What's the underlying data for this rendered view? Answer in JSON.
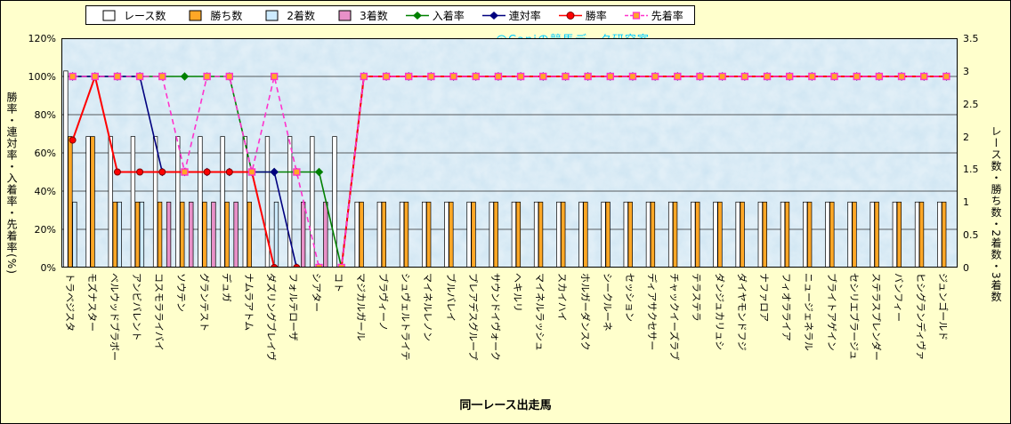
{
  "watermark": "@Caniの競馬データ研究室",
  "chart_data": {
    "type": "bar+line-combo",
    "x_title": "同一レース出走馬",
    "y_left_title": "勝率・連対率・入着率・先着率(%)",
    "y_right_title": "レース数・勝ち数・2着数・3着数",
    "y_left_range": [
      0,
      120
    ],
    "y_right_range": [
      0,
      3.5
    ],
    "y_left_values": [
      0,
      20,
      40,
      60,
      80,
      100,
      120
    ],
    "y_left_ticks": [
      "0%",
      "20%",
      "40%",
      "60%",
      "80%",
      "100%",
      "120%"
    ],
    "y_right_values": [
      0,
      0.5,
      1,
      1.5,
      2,
      2.5,
      3,
      3.5
    ],
    "y_right_ticks": [
      "0",
      "0.5",
      "1",
      "1.5",
      "2",
      "2.5",
      "3",
      "3.5"
    ],
    "grid": "on",
    "legend_position": "top",
    "colors": {
      "page_bg": "#FFFFCC",
      "plot_bg": "#C9E2F1",
      "grid_line": "#2a2a2a",
      "watermark": "#00CCFF"
    },
    "categories": [
      "トラベジスタ",
      "モズナスター",
      "ベルウッドブラボー",
      "アンビバレント",
      "コスモラライバイ",
      "ソウテン",
      "グランテスト",
      "デュガ",
      "ナムラアトム",
      "ダズリングブレイヴ",
      "フォルテローザ",
      "シアター",
      "コト",
      "マジカルガール",
      "ブラヴィーノ",
      "シュヴェルトライテ",
      "マイネルレノン",
      "ブルバレイ",
      "プレアデスグループ",
      "サウンドイヴォーク",
      "ヘキルリ",
      "マイネルラッシュ",
      "スカイハイ",
      "ホルガーダンスク",
      "シークルーネ",
      "セッション",
      "ディアサクセサー",
      "チャックイーズラブ",
      "テラステラ",
      "ダンジュカリュシ",
      "ダイヤモンドフジ",
      "ナファロア",
      "フィオラライア",
      "ニュージェネラル",
      "ブライトアゲイン",
      "セシリエブラージュ",
      "ステラスプレンダー",
      "バンフィー",
      "ヒシグランディヴァ",
      "ジュンゴールド"
    ],
    "bar_series": [
      {
        "name": "レース数",
        "color": "#FFFFFF",
        "values": [
          3,
          2,
          2,
          2,
          2,
          2,
          2,
          2,
          2,
          2,
          2,
          2,
          2,
          1,
          1,
          1,
          1,
          1,
          1,
          1,
          1,
          1,
          1,
          1,
          1,
          1,
          1,
          1,
          1,
          1,
          1,
          1,
          1,
          1,
          1,
          1,
          1,
          1,
          1,
          1
        ]
      },
      {
        "name": "勝ち数",
        "color": "#FFA726",
        "values": [
          2,
          2,
          1,
          1,
          1,
          1,
          1,
          1,
          1,
          0,
          0,
          0,
          0,
          1,
          1,
          1,
          1,
          1,
          1,
          1,
          1,
          1,
          1,
          1,
          1,
          1,
          1,
          1,
          1,
          1,
          1,
          1,
          1,
          1,
          1,
          1,
          1,
          1,
          1,
          1
        ]
      },
      {
        "name": "2着数",
        "color": "#CDEBFF",
        "values": [
          1,
          0,
          1,
          1,
          0,
          0,
          0,
          0,
          0,
          1,
          0,
          0,
          0,
          0,
          0,
          0,
          0,
          0,
          0,
          0,
          0,
          0,
          0,
          0,
          0,
          0,
          0,
          0,
          0,
          0,
          0,
          0,
          0,
          0,
          0,
          0,
          0,
          0,
          0,
          0
        ]
      },
      {
        "name": "3着数",
        "color": "#E890C8",
        "values": [
          0,
          0,
          0,
          0,
          1,
          1,
          1,
          1,
          0,
          0,
          1,
          1,
          0,
          0,
          0,
          0,
          0,
          0,
          0,
          0,
          0,
          0,
          0,
          0,
          0,
          0,
          0,
          0,
          0,
          0,
          0,
          0,
          0,
          0,
          0,
          0,
          0,
          0,
          0,
          0
        ]
      }
    ],
    "line_series": [
      {
        "name": "入着率",
        "color": "#008000",
        "marker": "diamond",
        "dash": false,
        "values": [
          100,
          100,
          100,
          100,
          100,
          100,
          100,
          100,
          50,
          50,
          50,
          50,
          0,
          100,
          100,
          100,
          100,
          100,
          100,
          100,
          100,
          100,
          100,
          100,
          100,
          100,
          100,
          100,
          100,
          100,
          100,
          100,
          100,
          100,
          100,
          100,
          100,
          100,
          100,
          100
        ]
      },
      {
        "name": "連対率",
        "color": "#00007F",
        "marker": "diamond",
        "dash": false,
        "values": [
          100,
          100,
          100,
          100,
          50,
          50,
          50,
          50,
          50,
          50,
          0,
          0,
          0,
          100,
          100,
          100,
          100,
          100,
          100,
          100,
          100,
          100,
          100,
          100,
          100,
          100,
          100,
          100,
          100,
          100,
          100,
          100,
          100,
          100,
          100,
          100,
          100,
          100,
          100,
          100
        ]
      },
      {
        "name": "勝率",
        "color": "#FF0000",
        "marker": "circle",
        "dash": false,
        "values": [
          66.7,
          100,
          50,
          50,
          50,
          50,
          50,
          50,
          50,
          0,
          0,
          0,
          0,
          100,
          100,
          100,
          100,
          100,
          100,
          100,
          100,
          100,
          100,
          100,
          100,
          100,
          100,
          100,
          100,
          100,
          100,
          100,
          100,
          100,
          100,
          100,
          100,
          100,
          100,
          100
        ]
      },
      {
        "name": "先着率",
        "color": "#FF33CC",
        "marker": "square",
        "marker_fill": "#FFA726",
        "dash": true,
        "values": [
          100,
          100,
          100,
          100,
          100,
          50,
          100,
          100,
          50,
          100,
          50,
          0,
          0,
          100,
          100,
          100,
          100,
          100,
          100,
          100,
          100,
          100,
          100,
          100,
          100,
          100,
          100,
          100,
          100,
          100,
          100,
          100,
          100,
          100,
          100,
          100,
          100,
          100,
          100,
          100
        ]
      }
    ],
    "legend": [
      {
        "label": "レース数",
        "swatch": "bar",
        "color": "#FFFFFF"
      },
      {
        "label": "勝ち数",
        "swatch": "bar",
        "color": "#FFA726"
      },
      {
        "label": "2着数",
        "swatch": "bar",
        "color": "#CDEBFF"
      },
      {
        "label": "3着数",
        "swatch": "bar",
        "color": "#E890C8"
      },
      {
        "label": "入着率",
        "swatch": "line-diamond",
        "color": "#008000"
      },
      {
        "label": "連対率",
        "swatch": "line-diamond",
        "color": "#00007F"
      },
      {
        "label": "勝率",
        "swatch": "line-circle",
        "color": "#FF0000"
      },
      {
        "label": "先着率",
        "swatch": "line-square-dash",
        "color": "#FF33CC",
        "marker_fill": "#FFA726"
      }
    ]
  }
}
